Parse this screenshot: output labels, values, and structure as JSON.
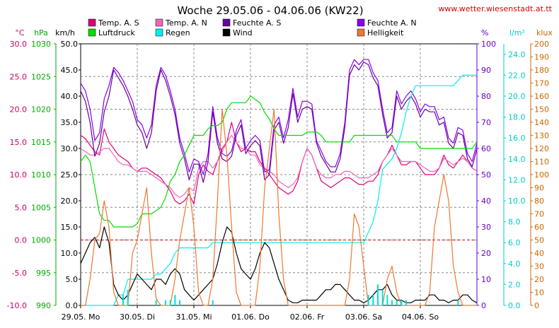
{
  "chart_data": {
    "type": "line",
    "title": "Woche 29.05.06 - 04.06.06 (KW22)",
    "source": "www.wetter.wiesenstadt.at.tt",
    "background": "#ffffff",
    "x_labels": [
      "29.05. Mo",
      "30.05. Di",
      "31.05. Mi",
      "01.06. Do",
      "02.06. Fr",
      "03.06. Sa",
      "04.06. So"
    ],
    "x": [
      0,
      2,
      4,
      6,
      8,
      10,
      12,
      14,
      16,
      18,
      20,
      22,
      24,
      26,
      28,
      30,
      32,
      34,
      36,
      38,
      40,
      42,
      44,
      46,
      48,
      50,
      52,
      54,
      56,
      58,
      60,
      62,
      64,
      66,
      68,
      70,
      72,
      74,
      76,
      78,
      80,
      82,
      84,
      86,
      88,
      90,
      92,
      94,
      96,
      98,
      100,
      102,
      104,
      106,
      108,
      110,
      112,
      114,
      116,
      118,
      120,
      122,
      124,
      126,
      128,
      130,
      132,
      134,
      136,
      138,
      140,
      142,
      144,
      146,
      148,
      150,
      152,
      154,
      156,
      158,
      160,
      162,
      164,
      166,
      168
    ],
    "x_unit": "hours since 29.05. 00:00",
    "axes": [
      {
        "id": "temp",
        "label": "°C",
        "min": -10,
        "max": 30,
        "step": 5,
        "decimals": 1,
        "color": "#cc0066"
      },
      {
        "id": "pres",
        "label": "hPa",
        "min": 990,
        "max": 1030,
        "step": 5,
        "decimals": 0,
        "color": "#00aa00"
      },
      {
        "id": "wind",
        "label": "km/h",
        "min": 0,
        "max": 50,
        "step": 5,
        "decimals": 1,
        "color": "#000000"
      },
      {
        "id": "hum",
        "label": "%",
        "min": 0,
        "max": 100,
        "step": 10,
        "decimals": 0,
        "color": "#6600cc"
      },
      {
        "id": "rain",
        "label": "l/m²",
        "min": 0,
        "max": 25,
        "step": 2,
        "decimals": 1,
        "color": "#00cccc"
      },
      {
        "id": "lux",
        "label": "klux",
        "min": 0,
        "max": 200,
        "step": 10,
        "decimals": 0,
        "color": "#cc6600"
      }
    ],
    "reference_line": {
      "axis": "temp",
      "value": 0,
      "color": "#cc0000"
    },
    "series": [
      {
        "name": "Temp. A. S",
        "axis": "temp",
        "color": "#dd0077",
        "values": [
          16,
          15.5,
          14.5,
          13.5,
          13,
          17,
          15,
          14,
          13,
          12.5,
          12,
          11,
          10.5,
          11,
          11,
          10.5,
          10,
          9.5,
          8.5,
          7.5,
          6,
          5.5,
          6,
          7,
          5.5,
          10,
          11.5,
          10.5,
          10,
          12,
          14,
          15,
          18,
          15,
          13.5,
          14,
          13.5,
          13.5,
          12,
          11,
          10,
          9,
          8,
          7.5,
          7,
          7.5,
          9,
          12,
          14,
          13,
          11,
          9,
          8.5,
          8,
          8.5,
          9,
          9.5,
          9.5,
          9,
          8.5,
          8.5,
          9,
          9,
          10,
          12,
          13,
          14.5,
          13,
          11.5,
          11.5,
          12,
          12,
          11,
          10,
          10,
          10,
          11,
          13,
          11.5,
          11,
          12,
          13,
          12,
          11,
          10.5
        ]
      },
      {
        "name": "Temp. A. N",
        "axis": "temp",
        "color": "#ee66bb",
        "values": [
          14,
          13.5,
          13,
          13,
          13.5,
          14,
          14,
          13,
          12,
          11.5,
          11.5,
          11,
          10.5,
          10.5,
          10.5,
          10,
          9.5,
          9,
          8.5,
          8,
          7,
          6.5,
          7,
          8,
          7.5,
          11,
          12,
          12,
          11,
          12,
          13.5,
          15,
          16,
          15,
          14,
          14,
          13,
          13,
          11.5,
          11,
          10.5,
          10,
          9,
          8.5,
          8,
          8.5,
          9.5,
          12,
          14,
          13,
          11,
          10,
          9.5,
          9.5,
          10,
          10,
          10.5,
          10.5,
          10,
          9.5,
          9.5,
          9.5,
          10,
          10.5,
          12,
          13,
          14,
          13,
          12,
          12,
          12,
          12,
          11.5,
          11,
          10.5,
          10.5,
          11,
          12.5,
          12,
          11.5,
          12,
          12.5,
          12,
          11,
          10.5
        ]
      },
      {
        "name": "Feuchte A. S",
        "axis": "hum",
        "color": "#660099",
        "values": [
          82,
          78,
          70,
          57,
          62,
          74,
          80,
          90,
          87,
          84,
          80,
          75,
          69,
          66,
          60,
          66,
          82,
          90,
          86,
          80,
          73,
          62,
          56,
          48,
          54,
          54,
          47,
          55,
          74,
          62,
          56,
          55,
          57,
          65,
          69,
          58,
          61,
          63,
          61,
          48,
          50,
          67,
          70,
          62,
          68,
          81,
          70,
          75,
          76,
          75,
          62,
          57,
          54,
          51,
          51,
          56,
          68,
          88,
          92,
          90,
          93,
          92,
          87,
          84,
          73,
          64,
          66,
          80,
          75,
          78,
          80,
          77,
          72,
          75,
          74,
          74,
          69,
          70,
          62,
          60,
          66,
          65,
          56,
          53,
          60
        ]
      },
      {
        "name": "Feuchte A. N",
        "axis": "hum",
        "color": "#8800ee",
        "values": [
          85,
          82,
          75,
          63,
          66,
          79,
          84,
          91,
          89,
          86,
          82,
          78,
          71,
          69,
          64,
          69,
          84,
          91,
          88,
          82,
          75,
          64,
          58,
          51,
          56,
          55,
          50,
          58,
          76,
          64,
          58,
          57,
          59,
          67,
          71,
          60,
          63,
          65,
          63,
          51,
          52,
          69,
          72,
          64,
          71,
          83,
          72,
          78,
          78,
          77,
          63,
          59,
          55,
          53,
          53,
          58,
          70,
          90,
          94,
          92,
          94,
          94,
          89,
          86,
          75,
          66,
          68,
          82,
          77,
          80,
          82,
          79,
          74,
          77,
          76,
          76,
          71,
          72,
          64,
          62,
          68,
          67,
          58,
          55,
          62
        ]
      },
      {
        "name": "Luftdruck",
        "axis": "pres",
        "color": "#00dd00",
        "values": [
          1012,
          1013,
          1012,
          1008,
          1004,
          1003,
          1003,
          1002,
          1002,
          1002,
          1002,
          1002,
          1002.5,
          1004,
          1004,
          1004,
          1004.5,
          1005,
          1006.5,
          1009,
          1010,
          1012,
          1013,
          1014.5,
          1016,
          1016,
          1016,
          1017,
          1017.5,
          1017.5,
          1018,
          1020,
          1021,
          1021,
          1021,
          1021,
          1022,
          1021.5,
          1021,
          1019.5,
          1018.5,
          1017,
          1016,
          1016,
          1016,
          1016,
          1016,
          1016,
          1016.5,
          1016.5,
          1016.5,
          1016,
          1015,
          1015,
          1015,
          1015,
          1015,
          1015,
          1016,
          1016,
          1016,
          1016,
          1016,
          1016,
          1016,
          1016,
          1016,
          1015,
          1015,
          1015,
          1015,
          1015,
          1014,
          1014,
          1014,
          1014,
          1014,
          1014,
          1014,
          1014,
          1014,
          1014,
          1014,
          1014,
          1015
        ]
      },
      {
        "name": "Regen",
        "axis": "rain",
        "color": "#00eeee",
        "values": [
          0,
          0,
          0,
          0,
          0,
          0,
          0,
          0,
          1,
          1,
          2.5,
          2.5,
          2.5,
          2.5,
          2.5,
          2.5,
          3,
          3,
          3.5,
          4,
          5,
          5.5,
          5.5,
          5.5,
          5.5,
          5.5,
          5.5,
          5.5,
          6,
          6,
          6,
          6,
          6,
          6,
          6,
          6,
          6,
          6,
          6,
          6,
          6,
          6,
          6,
          6,
          6,
          6,
          6,
          6,
          6,
          6,
          6,
          6,
          6,
          6,
          6,
          6,
          6,
          6,
          6,
          6,
          6,
          7,
          8,
          10,
          13,
          13.5,
          14,
          15,
          16.5,
          18.5,
          20,
          21,
          21,
          21,
          21,
          21,
          21,
          21,
          21,
          21,
          21.5,
          22,
          22,
          22,
          22
        ]
      },
      {
        "name": "Wind",
        "axis": "wind",
        "color": "#000000",
        "values": [
          8,
          10,
          12,
          13,
          11,
          15,
          12,
          4,
          2,
          1,
          2,
          4,
          6,
          5,
          4,
          3,
          5,
          5,
          4,
          6,
          7,
          6,
          3,
          2,
          1,
          2,
          3,
          4,
          5,
          8,
          12,
          15,
          14,
          10,
          7,
          6,
          5,
          7,
          10,
          12,
          11,
          8,
          5,
          3,
          1,
          0.5,
          0.5,
          1,
          1,
          1,
          1,
          2,
          3,
          3,
          4,
          4,
          3,
          2,
          1,
          1,
          0.5,
          1,
          2,
          3,
          3,
          4,
          2,
          1,
          1,
          0.5,
          0.5,
          1,
          1,
          1,
          2,
          2,
          1,
          1,
          0.5,
          1,
          1,
          2,
          2,
          1,
          0.5
        ]
      },
      {
        "name": "Helligkeit",
        "axis": "lux",
        "color": "#ee7733",
        "values": [
          0,
          0,
          20,
          50,
          55,
          80,
          60,
          10,
          0,
          0,
          0,
          40,
          50,
          70,
          90,
          40,
          5,
          0,
          0,
          0,
          20,
          50,
          70,
          90,
          60,
          10,
          0,
          0,
          20,
          80,
          150,
          115,
          60,
          10,
          0,
          0,
          0,
          0,
          30,
          90,
          120,
          150,
          70,
          20,
          0,
          0,
          0,
          0,
          0,
          0,
          0,
          0,
          0,
          0,
          0,
          0,
          0,
          20,
          70,
          60,
          30,
          0,
          0,
          0,
          0,
          20,
          30,
          10,
          0,
          0,
          0,
          0,
          0,
          0,
          10,
          60,
          80,
          100,
          80,
          30,
          10,
          0,
          0,
          0,
          0
        ]
      },
      {
        "name": "Regen (Balken)",
        "axis": "rain",
        "color": "#00dddd",
        "kind": "bars",
        "values": [
          0,
          0,
          0,
          0,
          0,
          0,
          0,
          0,
          0,
          1,
          1.5,
          0,
          0,
          0,
          0,
          0,
          0.5,
          0,
          0.5,
          0.5,
          1,
          0.5,
          0,
          0,
          0,
          0,
          0,
          0,
          0.5,
          0,
          0,
          0,
          0,
          0,
          0,
          0,
          0,
          0,
          0,
          0,
          0,
          0,
          0,
          0,
          0,
          0,
          0,
          0,
          0,
          0,
          0,
          0,
          0,
          0,
          0,
          0,
          0,
          0,
          0,
          0,
          0,
          1,
          1,
          2,
          1.5,
          1,
          0.5,
          0.5,
          0.5,
          0.5,
          0,
          0,
          0,
          0,
          0,
          0,
          0,
          0,
          0,
          0,
          0.5,
          0,
          0,
          0,
          0
        ]
      }
    ],
    "legend": [
      {
        "label": "Temp. A. S",
        "color": "#dd0077"
      },
      {
        "label": "Temp. A. N",
        "color": "#ee66bb"
      },
      {
        "label": "Feuchte A. S",
        "color": "#660099"
      },
      {
        "label": "Feuchte A. N",
        "color": "#8800ee"
      },
      {
        "label": "Luftdruck",
        "color": "#00dd00"
      },
      {
        "label": "Regen",
        "color": "#00eeee"
      },
      {
        "label": "Wind",
        "color": "#000000"
      },
      {
        "label": "Helligkeit",
        "color": "#ee7733"
      }
    ],
    "grid": true
  }
}
